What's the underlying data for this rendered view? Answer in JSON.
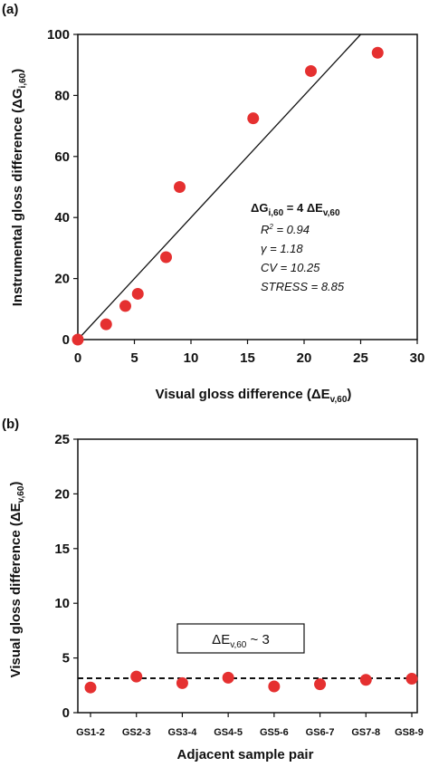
{
  "chart_data": [
    {
      "panel": "(a)",
      "type": "scatter",
      "xlabel": "Visual gloss difference (ΔE",
      "xlabel_sub": "v,60",
      "xlabel_end": ")",
      "ylabel": "Instrumental gloss difference (ΔG",
      "ylabel_sub": "i,60",
      "ylabel_end": ")",
      "xlim": [
        0,
        30
      ],
      "ylim": [
        0,
        100
      ],
      "xticks": [
        "0",
        "5",
        "10",
        "15",
        "20",
        "25",
        "30"
      ],
      "yticks": [
        "0",
        "20",
        "40",
        "60",
        "80",
        "100"
      ],
      "points": [
        {
          "x": 0,
          "y": 0
        },
        {
          "x": 2.5,
          "y": 5
        },
        {
          "x": 4.2,
          "y": 11
        },
        {
          "x": 5.3,
          "y": 15
        },
        {
          "x": 7.8,
          "y": 27
        },
        {
          "x": 9.0,
          "y": 50
        },
        {
          "x": 15.5,
          "y": 72.5
        },
        {
          "x": 20.6,
          "y": 88
        },
        {
          "x": 26.5,
          "y": 94
        }
      ],
      "fit_line": {
        "slope": 4,
        "intercept": 0
      },
      "equation": {
        "lhs": "ΔG",
        "lhs_sub": "i,60",
        "mid": " = 4 ΔE",
        "rhs_sub": "v,60"
      },
      "stats": {
        "r2_label": "R",
        "r2_sup": "2",
        "r2_value": " = 0.94",
        "gamma": "γ = 1.18",
        "cv": "CV = 10.25",
        "stress": "STRESS = 8.85"
      },
      "marker_color": "#e53030",
      "grid": false
    },
    {
      "panel": "(b)",
      "type": "scatter",
      "xlabel": "Adjacent sample pair",
      "ylabel": "Visual gloss difference (ΔE",
      "ylabel_sub": "v,60",
      "ylabel_end": ")",
      "ylim": [
        0,
        25
      ],
      "yticks": [
        "0",
        "5",
        "10",
        "15",
        "20",
        "25"
      ],
      "categories": [
        "GS1-2",
        "GS2-3",
        "GS3-4",
        "GS4-5",
        "GS5-6",
        "GS6-7",
        "GS7-8",
        "GS8-9"
      ],
      "values": [
        2.3,
        3.3,
        2.7,
        3.2,
        2.4,
        2.6,
        3.0,
        3.1
      ],
      "reference_line": 3.15,
      "annotation": {
        "prefix": "ΔE",
        "sub": "v,60",
        "suffix": " ~ 3"
      },
      "marker_color": "#e53030",
      "grid": false
    }
  ]
}
